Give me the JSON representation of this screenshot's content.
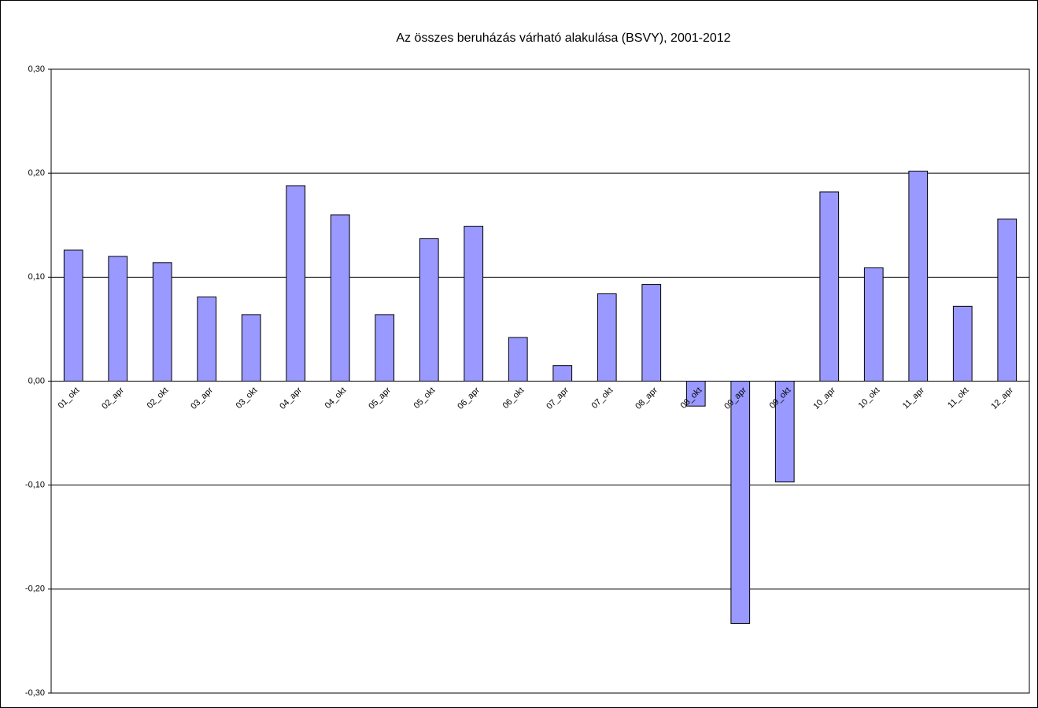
{
  "chart_data": {
    "type": "bar",
    "title": "Az összes beruházás várható alakulása (BSVY), 2001-2012",
    "categories": [
      "01_okt",
      "02_apr",
      "02_okt",
      "03_apr",
      "03_okt",
      "04_apr",
      "04_okt",
      "05_apr",
      "05_okt",
      "06_apr",
      "06_okt",
      "07_apr",
      "07_okt",
      "08_apr",
      "08_okt",
      "09_apr",
      "09_okt",
      "10_apr",
      "10_okt",
      "11_apr",
      "11_okt",
      "12_apr"
    ],
    "values": [
      0.126,
      0.12,
      0.114,
      0.081,
      0.064,
      0.188,
      0.16,
      0.064,
      0.137,
      0.149,
      0.042,
      0.015,
      0.084,
      0.093,
      -0.024,
      -0.233,
      -0.097,
      0.182,
      0.109,
      0.202,
      0.072,
      0.156
    ],
    "color": "#9999ff",
    "ylim": [
      -0.3,
      0.3
    ],
    "yticks": [
      {
        "value": -0.3,
        "label": "-0,30"
      },
      {
        "value": -0.2,
        "label": "-0,20"
      },
      {
        "value": -0.1,
        "label": "-0,10"
      },
      {
        "value": 0,
        "label": "0,00"
      },
      {
        "value": 0.1,
        "label": "0,10"
      },
      {
        "value": 0.2,
        "label": "0,20"
      },
      {
        "value": 0.3,
        "label": "0,30"
      }
    ],
    "grid": true
  }
}
